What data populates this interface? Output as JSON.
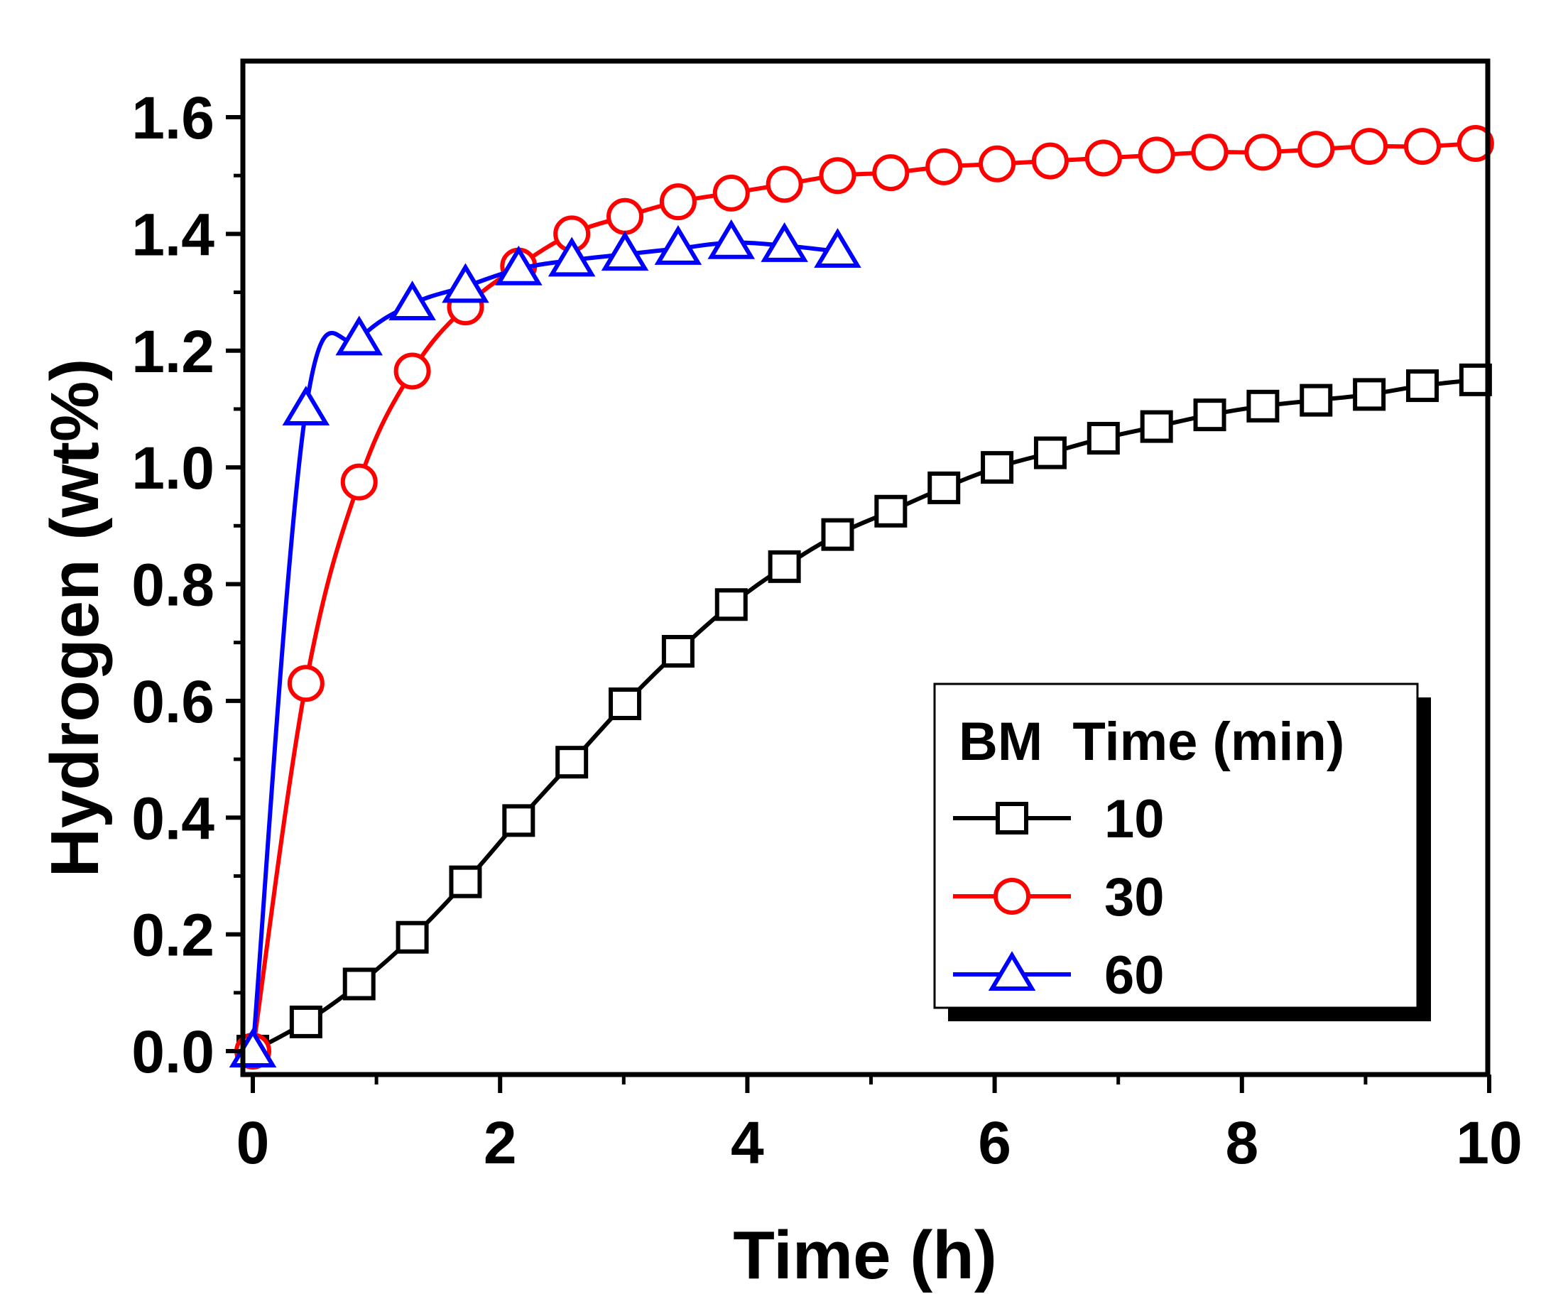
{
  "chart_data": {
    "type": "line",
    "xlabel": "Time (h)",
    "ylabel": "Hydrogen (wt%)",
    "xlim": [
      0,
      10
    ],
    "ylim": [
      -0.04,
      1.7
    ],
    "xticks": [
      0,
      2,
      4,
      6,
      8,
      10
    ],
    "xtick_labels": [
      "0",
      "2",
      "4",
      "6",
      "8",
      "10"
    ],
    "yticks": [
      0.0,
      0.2,
      0.4,
      0.6,
      0.8,
      1.0,
      1.2,
      1.4,
      1.6
    ],
    "ytick_labels": [
      "0.0",
      "0.2",
      "0.4",
      "0.6",
      "0.8",
      "1.0",
      "1.2",
      "1.4",
      "1.6"
    ],
    "grid": false,
    "legend": {
      "title": "BM  Time (min)",
      "position": "bottom-right"
    },
    "series": [
      {
        "name": "10",
        "color": "#000000",
        "marker": "square",
        "x": [
          0.0,
          0.43,
          0.86,
          1.29,
          1.72,
          2.15,
          2.58,
          3.01,
          3.44,
          3.87,
          4.3,
          4.73,
          5.16,
          5.59,
          6.02,
          6.45,
          6.88,
          7.31,
          7.74,
          8.17,
          8.6,
          9.03,
          9.46,
          9.89
        ],
        "y": [
          0.0,
          0.05,
          0.115,
          0.195,
          0.29,
          0.395,
          0.495,
          0.595,
          0.685,
          0.765,
          0.83,
          0.885,
          0.925,
          0.965,
          1.0,
          1.025,
          1.05,
          1.07,
          1.09,
          1.105,
          1.115,
          1.125,
          1.14,
          1.15
        ]
      },
      {
        "name": "30",
        "color": "#ff0000",
        "marker": "circle",
        "x": [
          0.0,
          0.43,
          0.86,
          1.29,
          1.72,
          2.15,
          2.58,
          3.01,
          3.44,
          3.87,
          4.3,
          4.73,
          5.16,
          5.59,
          6.02,
          6.45,
          6.88,
          7.31,
          7.74,
          8.17,
          8.6,
          9.03,
          9.46,
          9.89
        ],
        "y": [
          0.0,
          0.63,
          0.975,
          1.165,
          1.275,
          1.345,
          1.4,
          1.43,
          1.455,
          1.47,
          1.485,
          1.5,
          1.505,
          1.515,
          1.52,
          1.525,
          1.53,
          1.535,
          1.54,
          1.54,
          1.545,
          1.55,
          1.55,
          1.555
        ]
      },
      {
        "name": "60",
        "color": "#0000ff",
        "marker": "triangle",
        "x": [
          0.0,
          0.43,
          0.86,
          1.29,
          1.72,
          2.15,
          2.58,
          3.01,
          3.44,
          3.87,
          4.3,
          4.73
        ],
        "y": [
          0.0,
          1.1,
          1.22,
          1.28,
          1.31,
          1.34,
          1.355,
          1.365,
          1.375,
          1.385,
          1.38,
          1.37
        ]
      }
    ]
  }
}
